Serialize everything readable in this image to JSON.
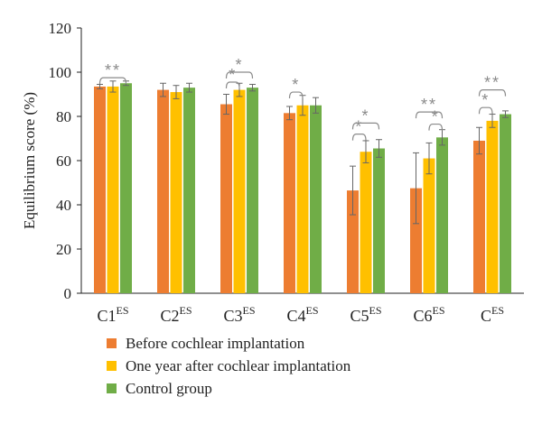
{
  "chart_data": {
    "type": "bar",
    "ylabel": "Equilibrium score (%)",
    "ylim": [
      0,
      120
    ],
    "yticks": [
      0,
      20,
      40,
      60,
      80,
      100,
      120
    ],
    "categories": [
      {
        "main": "C1",
        "sup": "ES"
      },
      {
        "main": "C2",
        "sup": "ES"
      },
      {
        "main": "C3",
        "sup": "ES"
      },
      {
        "main": "C4",
        "sup": "ES"
      },
      {
        "main": "C5",
        "sup": "ES"
      },
      {
        "main": "C6",
        "sup": "ES"
      },
      {
        "main": "C",
        "sup": "ES"
      }
    ],
    "series": [
      {
        "name": "Before cochlear implantation",
        "color": "#ED7D31",
        "values": [
          93.5,
          92,
          85.5,
          81.5,
          46.5,
          47.5,
          69
        ],
        "errors": [
          1,
          3,
          4.5,
          3,
          11,
          16,
          6
        ]
      },
      {
        "name": "One year after cochlear implantation",
        "color": "#FFC000",
        "values": [
          93.5,
          91,
          92,
          85,
          64,
          61,
          78
        ],
        "errors": [
          2.5,
          3,
          3,
          4.5,
          5,
          7,
          3
        ]
      },
      {
        "name": "Control group",
        "color": "#70AD47",
        "values": [
          95,
          93,
          93,
          85,
          65.5,
          70.5,
          81
        ],
        "errors": [
          1,
          2,
          1.5,
          3.5,
          4,
          3.5,
          1.5
        ]
      }
    ],
    "significance": [
      {
        "category": 0,
        "from": 0,
        "to": 2,
        "y": 97.5,
        "label": "**"
      },
      {
        "category": 2,
        "from": 0,
        "to": 1,
        "y": 95.5,
        "label": "*"
      },
      {
        "category": 2,
        "from": 0,
        "to": 2,
        "y": 100,
        "label": "*"
      },
      {
        "category": 3,
        "from": 0,
        "to": 1,
        "y": 91,
        "label": "*"
      },
      {
        "category": 4,
        "from": 0,
        "to": 1,
        "y": 72,
        "label": "*"
      },
      {
        "category": 4,
        "from": 0,
        "to": 2,
        "y": 77,
        "label": "*"
      },
      {
        "category": 5,
        "from": 1,
        "to": 2,
        "y": 76.5,
        "label": "*"
      },
      {
        "category": 5,
        "from": 0,
        "to": 2,
        "y": 82,
        "label": "**"
      },
      {
        "category": 6,
        "from": 0,
        "to": 1,
        "y": 84,
        "label": "*"
      },
      {
        "category": 6,
        "from": 0,
        "to": 2,
        "y": 92,
        "label": "**"
      }
    ],
    "legend_position": "bottom-left",
    "grid": false
  }
}
